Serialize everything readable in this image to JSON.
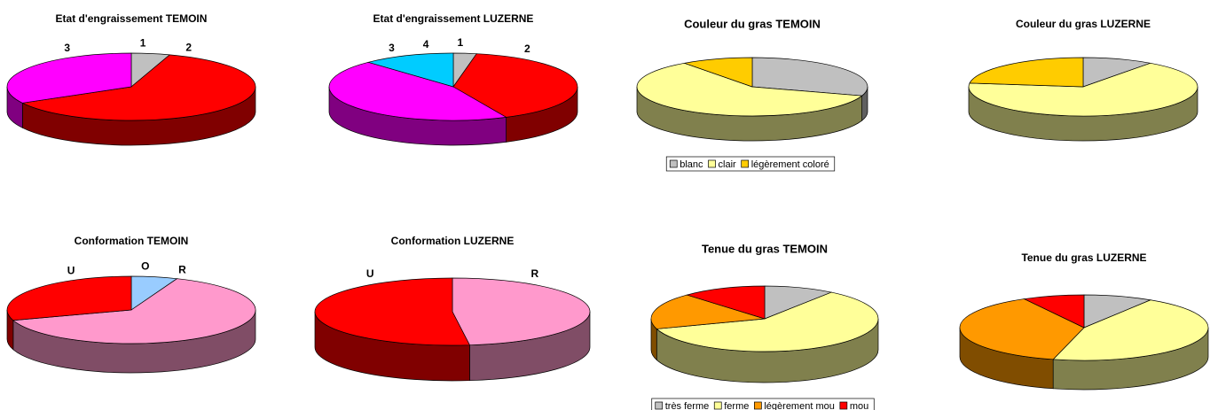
{
  "chart_data": [
    {
      "type": "pie",
      "title": "Etat d'engraissement TEMOIN",
      "categories": [
        "1",
        "2",
        "3"
      ],
      "values": [
        5,
        62,
        33
      ],
      "colors": [
        "#c0c0c0",
        "#ff0000",
        "#ff00ff"
      ]
    },
    {
      "type": "pie",
      "title": "Etat d'engraissement LUZERNE",
      "categories": [
        "1",
        "2",
        "3",
        "4"
      ],
      "values": [
        3,
        40,
        45,
        12
      ],
      "colors": [
        "#c0c0c0",
        "#ff0000",
        "#ff00ff",
        "#00ccff"
      ]
    },
    {
      "type": "pie",
      "title": "Couleur du gras TEMOIN",
      "categories": [
        "blanc",
        "clair",
        "légèrement coloré"
      ],
      "values": [
        30,
        60,
        10
      ],
      "colors": [
        "#c0c0c0",
        "#ffff99",
        "#ffcc00"
      ],
      "legend": "bottom"
    },
    {
      "type": "pie",
      "title": "Couleur du gras LUZERNE",
      "values": [
        10,
        67,
        23
      ],
      "colors": [
        "#c0c0c0",
        "#ffff99",
        "#ffcc00"
      ]
    },
    {
      "type": "pie",
      "title": "Conformation TEMOIN",
      "categories": [
        "O",
        "R",
        "U"
      ],
      "values": [
        6,
        64,
        30
      ],
      "colors": [
        "#99ccff",
        "#ff99cc",
        "#ff0000"
      ]
    },
    {
      "type": "pie",
      "title": "Conformation LUZERNE",
      "categories": [
        "R",
        "U"
      ],
      "values": [
        48,
        52
      ],
      "colors": [
        "#ff99cc",
        "#ff0000"
      ]
    },
    {
      "type": "pie",
      "title": "Tenue du gras TEMOIN",
      "categories": [
        "très ferme",
        "ferme",
        "légèrement mou",
        "mou"
      ],
      "values": [
        10,
        60,
        18,
        12
      ],
      "colors": [
        "#c0c0c0",
        "#ffff99",
        "#ff9900",
        "#ff0000"
      ],
      "legend": "bottom"
    },
    {
      "type": "pie",
      "title": "Tenue du gras LUZERNE",
      "values": [
        9,
        45,
        38,
        8
      ],
      "colors": [
        "#c0c0c0",
        "#ffff99",
        "#ff9900",
        "#ff0000"
      ]
    }
  ]
}
